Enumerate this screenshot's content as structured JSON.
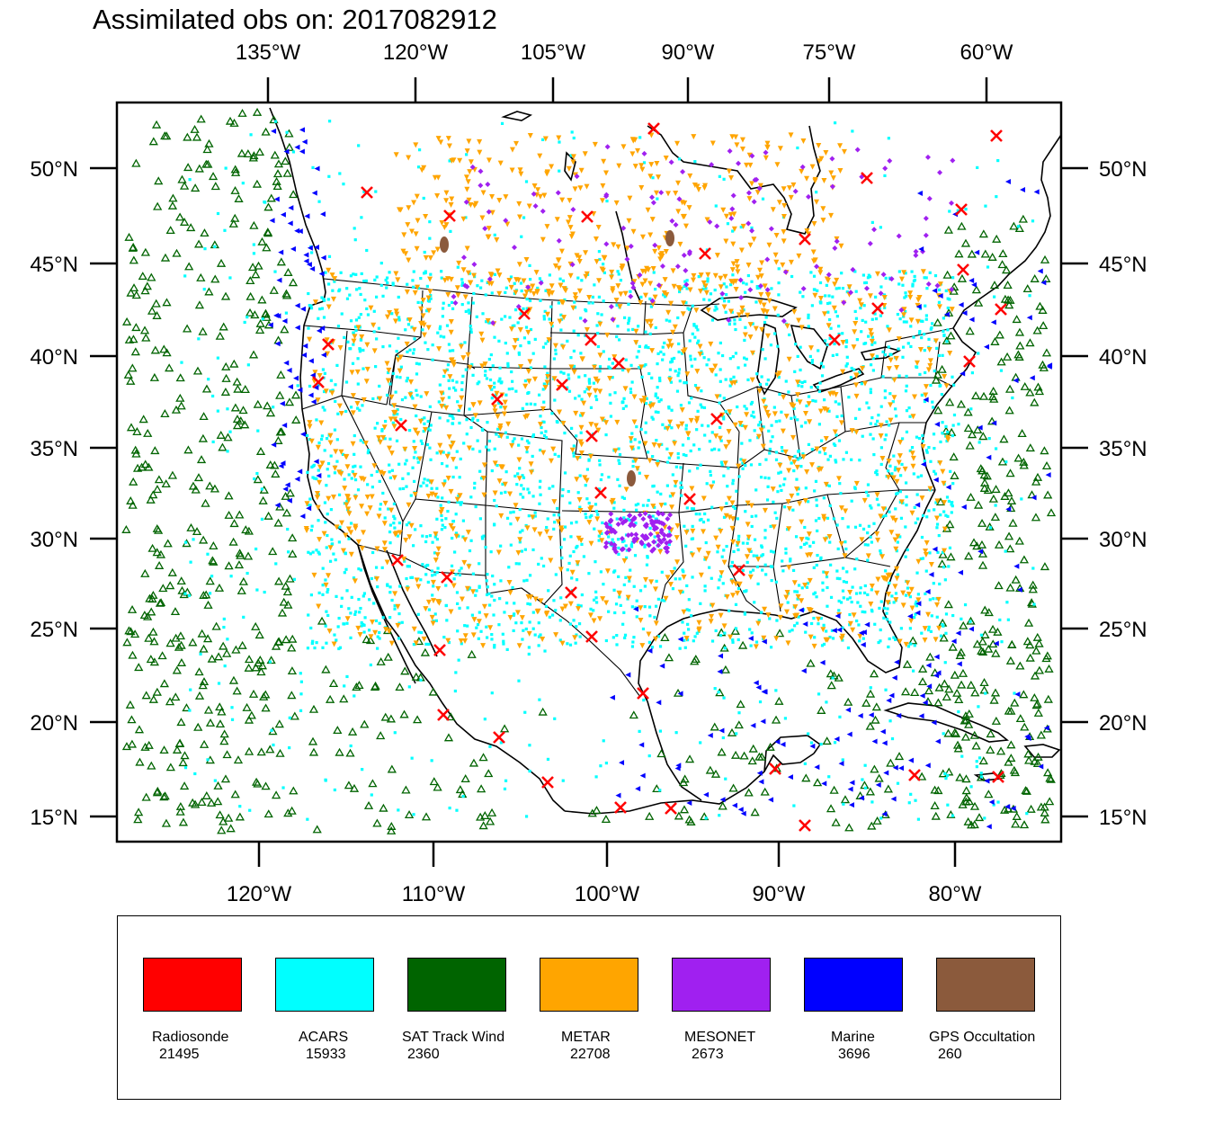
{
  "title": "Assimilated obs on: 2017082912",
  "top_axis_labels": [
    "135°W",
    "120°W",
    "105°W",
    "90°W",
    "75°W",
    "60°W"
  ],
  "bottom_axis_labels": [
    "120°W",
    "110°W",
    "100°W",
    "90°W",
    "80°W"
  ],
  "lat_labels": [
    "50°N",
    "45°N",
    "40°N",
    "35°N",
    "30°N",
    "25°N",
    "20°N",
    "15°N"
  ],
  "legend": [
    {
      "name": "Radiosonde",
      "count": "21495",
      "color": "#ff0000",
      "marker": "x-cross"
    },
    {
      "name": "ACARS",
      "count": "15933",
      "color": "#00ffff",
      "marker": "square-dot"
    },
    {
      "name": "SAT Track Wind",
      "count": "2360",
      "color": "#006400",
      "marker": "triangle-up-hollow"
    },
    {
      "name": "METAR",
      "count": "22708",
      "color": "#ffa500",
      "marker": "triangle-down"
    },
    {
      "name": "MESONET",
      "count": "2673",
      "color": "#a020f0",
      "marker": "diamond"
    },
    {
      "name": "Marine",
      "count": "3696",
      "color": "#0000ff",
      "marker": "triangle-left"
    },
    {
      "name": "GPS Occultation",
      "count": "260",
      "color": "#8b5a3c",
      "marker": "blob"
    }
  ]
}
